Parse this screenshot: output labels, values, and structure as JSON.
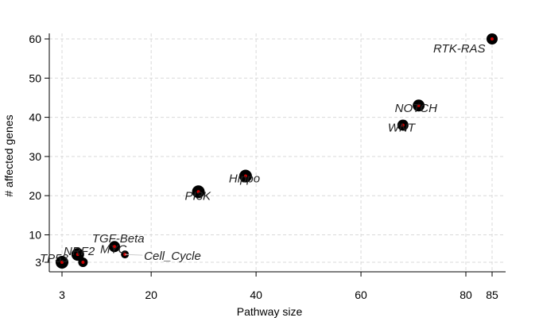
{
  "chart_data": {
    "type": "scatter",
    "title": "",
    "xlabel": "Pathway size",
    "ylabel": "# affected genes",
    "xlim": [
      3,
      85
    ],
    "ylim": [
      3,
      60
    ],
    "x_ticks": [
      3,
      20,
      40,
      60,
      80,
      85
    ],
    "y_ticks": [
      3,
      10,
      20,
      30,
      40,
      50,
      60
    ],
    "grid": true,
    "points": [
      {
        "label": "TP53",
        "x": 3,
        "y": 3,
        "size": 1.0
      },
      {
        "label": "NRF2",
        "x": 3,
        "y": 3,
        "size": 0.9
      },
      {
        "label": "TGF-Beta",
        "x": 6,
        "y": 5,
        "size": 1.0
      },
      {
        "label": "",
        "x": 7,
        "y": 3,
        "size": 0.6
      },
      {
        "label": "MYC",
        "x": 13,
        "y": 7,
        "size": 0.8
      },
      {
        "label": "Cell_Cycle",
        "x": 15,
        "y": 5,
        "size": 0.4
      },
      {
        "label": "PI3K",
        "x": 29,
        "y": 21,
        "size": 1.0
      },
      {
        "label": "Hippo",
        "x": 38,
        "y": 25,
        "size": 1.0
      },
      {
        "label": "WNT",
        "x": 68,
        "y": 38,
        "size": 0.8
      },
      {
        "label": "NOTCH",
        "x": 71,
        "y": 43,
        "size": 0.9
      },
      {
        "label": "RTK-RAS",
        "x": 85,
        "y": 60,
        "size": 0.8
      }
    ],
    "colors": {
      "point": "#000000",
      "center": "#cc0000",
      "grid": "#d9d9d9",
      "axis": "#000000"
    }
  }
}
